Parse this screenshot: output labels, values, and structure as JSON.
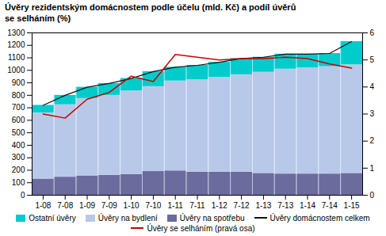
{
  "chart_data": {
    "type": "bar",
    "title": "Úvěry rezidentským domácnostem podle účelu (mld. Kč) a podíl úvěrů\nse selháním (%)",
    "categories": [
      "1-08",
      "7-08",
      "1-09",
      "7-09",
      "1-10",
      "7-10",
      "1-11",
      "7-11",
      "1-12",
      "7-12",
      "1-13",
      "7-13",
      "1-14",
      "7-14",
      "1-15"
    ],
    "stacked": true,
    "series": [
      {
        "name": "Úvěry na spotřebu",
        "type": "bar",
        "color": "#6B6B9E",
        "values": [
          130,
          145,
          155,
          160,
          165,
          190,
          195,
          185,
          185,
          185,
          175,
          170,
          170,
          170,
          175
        ]
      },
      {
        "name": "Úvěry na bydlení",
        "type": "bar",
        "color": "#B8C8E8",
        "values": [
          530,
          580,
          620,
          640,
          670,
          680,
          720,
          740,
          760,
          780,
          810,
          840,
          850,
          860,
          870
        ]
      },
      {
        "name": "Ostatní úvěry",
        "type": "bar",
        "color": "#00CCCC",
        "values": [
          60,
          75,
          90,
          95,
          100,
          120,
          110,
          115,
          120,
          130,
          120,
          120,
          110,
          105,
          185
        ]
      },
      {
        "name": "Úvěry domácnostem celkem",
        "type": "line",
        "color": "#111111",
        "values": [
          720,
          800,
          865,
          895,
          935,
          990,
          1025,
          1040,
          1065,
          1095,
          1105,
          1130,
          1130,
          1135,
          1230
        ]
      },
      {
        "name": "Úvěry se selháním (pravá osa)",
        "type": "line",
        "axis": "y2",
        "color": "#CC0000",
        "values": [
          3.0,
          2.85,
          3.55,
          3.8,
          4.4,
          4.2,
          5.2,
          5.1,
          5.0,
          5.05,
          5.05,
          5.1,
          5.05,
          4.85,
          4.7
        ]
      }
    ],
    "ylim": [
      0,
      1300
    ],
    "yticks": [
      0,
      100,
      200,
      300,
      400,
      500,
      600,
      700,
      800,
      900,
      1000,
      1100,
      1200,
      1300
    ],
    "y2lim": [
      0,
      6
    ],
    "y2ticks": [
      0,
      1,
      2,
      3,
      4,
      5,
      6
    ],
    "grid": false,
    "legend": "bottom"
  }
}
